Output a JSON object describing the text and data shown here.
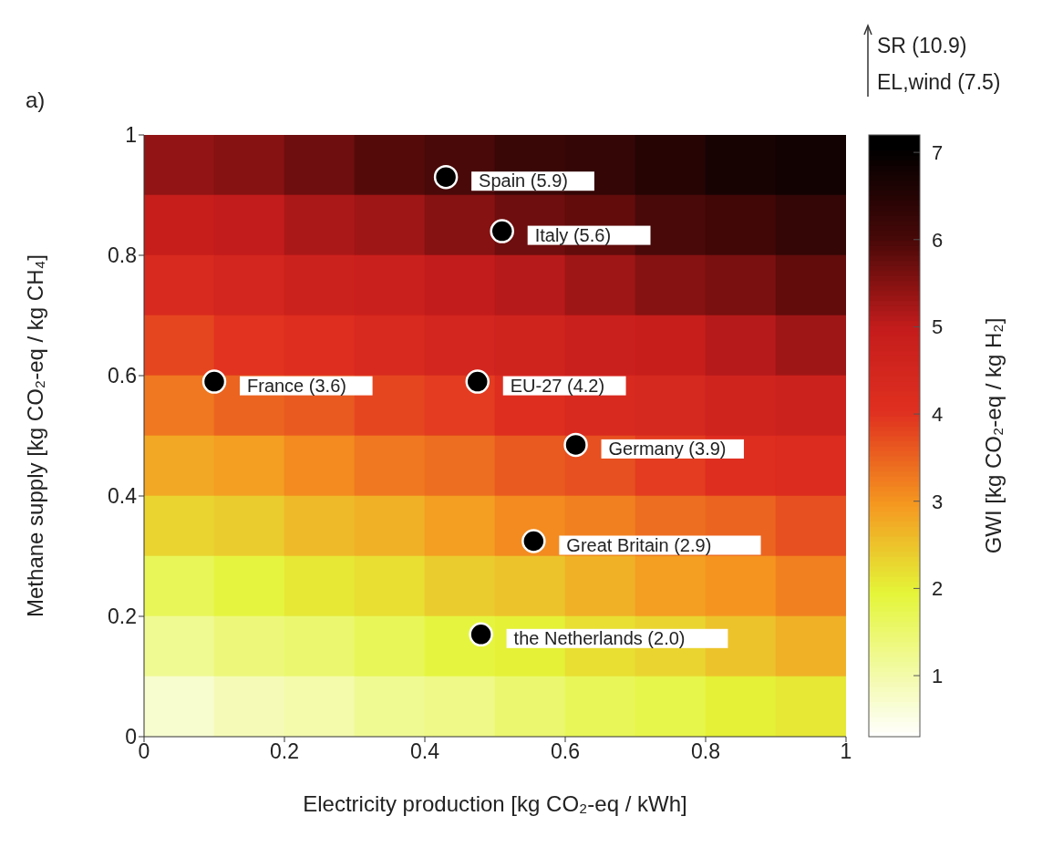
{
  "chart_data": {
    "type": "heatmap",
    "xlabel": "Electricity production [kg CO₂-eq / kWh]",
    "ylabel": "Methane supply [kg CO₂-eq / kg CH₄]",
    "clabel": "GWI [kg CO₂-eq / kg H₂]",
    "annotations": [
      "a)",
      "SR (10.9)",
      "EL,wind (7.5)",
      {
        "text": "Spain (5.9)",
        "x": 0.43,
        "y": 0.93
      },
      {
        "text": "Italy (5.6)",
        "x": 0.51,
        "y": 0.84
      },
      {
        "text": "France (3.6)",
        "x": 0.1,
        "y": 0.59
      },
      {
        "text": "EU-27 (4.2)",
        "x": 0.475,
        "y": 0.59
      },
      {
        "text": "Germany (3.9)",
        "x": 0.615,
        "y": 0.485
      },
      {
        "text": "Great Britain (2.9)",
        "x": 0.555,
        "y": 0.325
      },
      {
        "text": "the Netherlands (2.0)",
        "x": 0.48,
        "y": 0.17
      }
    ],
    "xlim": [
      0,
      1
    ],
    "ylim": [
      0,
      1
    ],
    "xticks": [
      0,
      0.2,
      0.4,
      0.6,
      0.8,
      1
    ],
    "yticks": [
      0,
      0.2,
      0.4,
      0.6,
      0.8,
      1
    ],
    "clim": [
      0.3,
      7.2
    ],
    "cticks": [
      1,
      2,
      3,
      4,
      5,
      6,
      7
    ],
    "cells": [
      [
        5.4,
        5.5,
        5.7,
        5.9,
        6.0,
        6.2,
        6.3,
        6.5,
        6.7,
        6.8
      ],
      [
        4.9,
        5.0,
        5.2,
        5.3,
        5.5,
        5.7,
        5.8,
        6.0,
        6.1,
        6.3
      ],
      [
        4.3,
        4.5,
        4.7,
        4.8,
        5.0,
        5.1,
        5.3,
        5.5,
        5.6,
        5.8
      ],
      [
        3.8,
        4.0,
        4.1,
        4.3,
        4.5,
        4.6,
        4.8,
        4.9,
        5.1,
        5.3
      ],
      [
        3.3,
        3.5,
        3.6,
        3.8,
        3.9,
        4.1,
        4.3,
        4.4,
        4.6,
        4.7
      ],
      [
        2.8,
        2.9,
        3.1,
        3.3,
        3.4,
        3.6,
        3.7,
        3.9,
        4.1,
        4.2
      ],
      [
        2.3,
        2.4,
        2.6,
        2.7,
        2.9,
        3.1,
        3.2,
        3.4,
        3.5,
        3.7
      ],
      [
        1.7,
        1.9,
        2.1,
        2.2,
        2.4,
        2.5,
        2.7,
        2.9,
        3.0,
        3.2
      ],
      [
        1.2,
        1.4,
        1.5,
        1.7,
        1.9,
        2.0,
        2.2,
        2.3,
        2.5,
        2.7
      ],
      [
        0.7,
        0.9,
        1.0,
        1.2,
        1.3,
        1.5,
        1.7,
        1.8,
        2.0,
        2.1
      ]
    ],
    "series": [
      {
        "type": "scatter",
        "color": "#000000",
        "x": [
          0.43,
          0.51,
          0.1,
          0.475,
          0.615,
          0.555,
          0.48
        ],
        "values": [
          0.93,
          0.84,
          0.59,
          0.59,
          0.485,
          0.325,
          0.17
        ]
      }
    ],
    "marker": "circle",
    "grid": false,
    "legend": false
  }
}
